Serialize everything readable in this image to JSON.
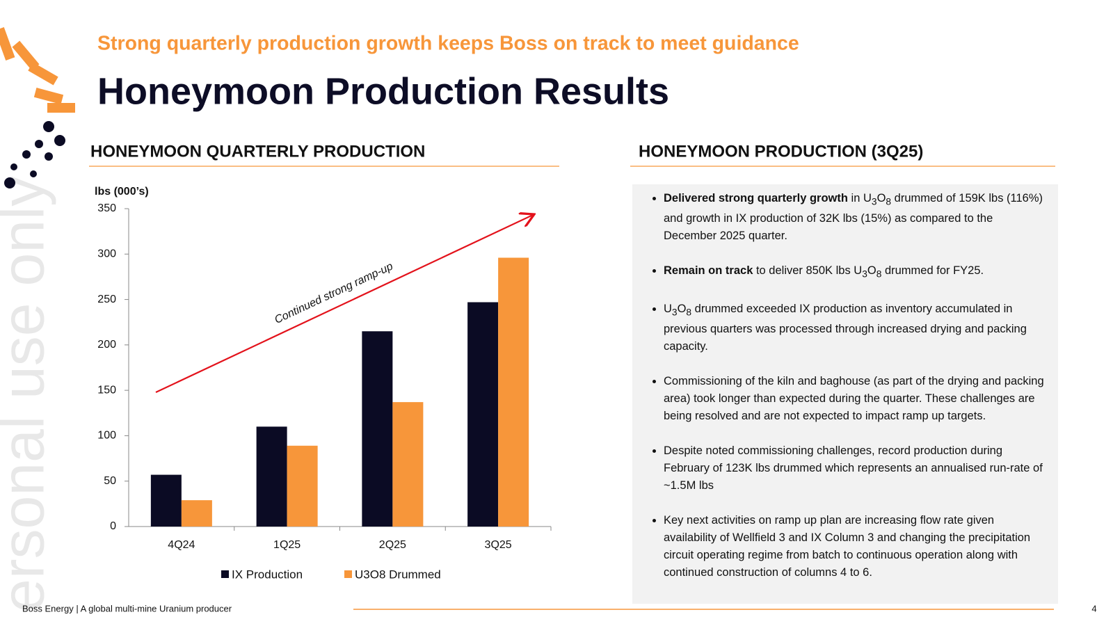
{
  "header": {
    "subtitle": "Strong quarterly production growth keeps Boss on track to meet guidance",
    "title": "Honeymoon Production Results"
  },
  "watermark": "ersonal use only",
  "chart_data": {
    "type": "bar",
    "title": "HONEYMOON QUARTERLY PRODUCTION",
    "y_label": "lbs (000’s)",
    "categories": [
      "4Q24",
      "1Q25",
      "2Q25",
      "3Q25"
    ],
    "series": [
      {
        "name": "IX Production",
        "color": "#0b0b24",
        "values": [
          57,
          110,
          215,
          247
        ]
      },
      {
        "name": "U3O8 Drummed",
        "color": "#f7963a",
        "values": [
          29,
          89,
          137,
          296
        ]
      }
    ],
    "ylim": [
      0,
      350
    ],
    "yticks": [
      0,
      50,
      100,
      150,
      200,
      250,
      300,
      350
    ],
    "grid": false,
    "legend": "bottom",
    "annotation": "Continued strong ramp-up"
  },
  "panel": {
    "title": "HONEYMOON PRODUCTION (3Q25)",
    "bullets": [
      [
        {
          "bold": "Delivered strong quarterly growth"
        },
        " in U",
        {
          "sub": "3"
        },
        "O",
        {
          "sub": "8"
        },
        " drummed of 159K lbs (116%) and growth in IX production of 32K lbs (15%) as compared to the December 2025 quarter."
      ],
      [
        {
          "bold": "Remain on track"
        },
        " to deliver 850K lbs U",
        {
          "sub": "3"
        },
        "O",
        {
          "sub": "8"
        },
        " drummed for FY25."
      ],
      [
        "U",
        {
          "sub": "3"
        },
        "O",
        {
          "sub": "8"
        },
        " drummed exceeded IX production as inventory accumulated in previous quarters was processed through increased drying and packing capacity."
      ],
      [
        "Commissioning of the kiln and baghouse (as part of the drying and packing area) took longer than expected during the quarter. These challenges are being resolved and are not expected to impact ramp up targets."
      ],
      [
        "Despite noted commissioning challenges, record production during February of 123K lbs drummed which represents an annualised run-rate of ~1.5M lbs"
      ],
      [
        "Key next activities on ramp up plan are increasing flow rate given availability of Wellfield 3 and IX Column 3 and changing the precipitation circuit operating regime from batch to continuous operation along with continued construction of columns 4 to 6."
      ]
    ]
  },
  "footer": {
    "text": "Boss Energy | A global multi-mine Uranium producer",
    "page": "4"
  }
}
